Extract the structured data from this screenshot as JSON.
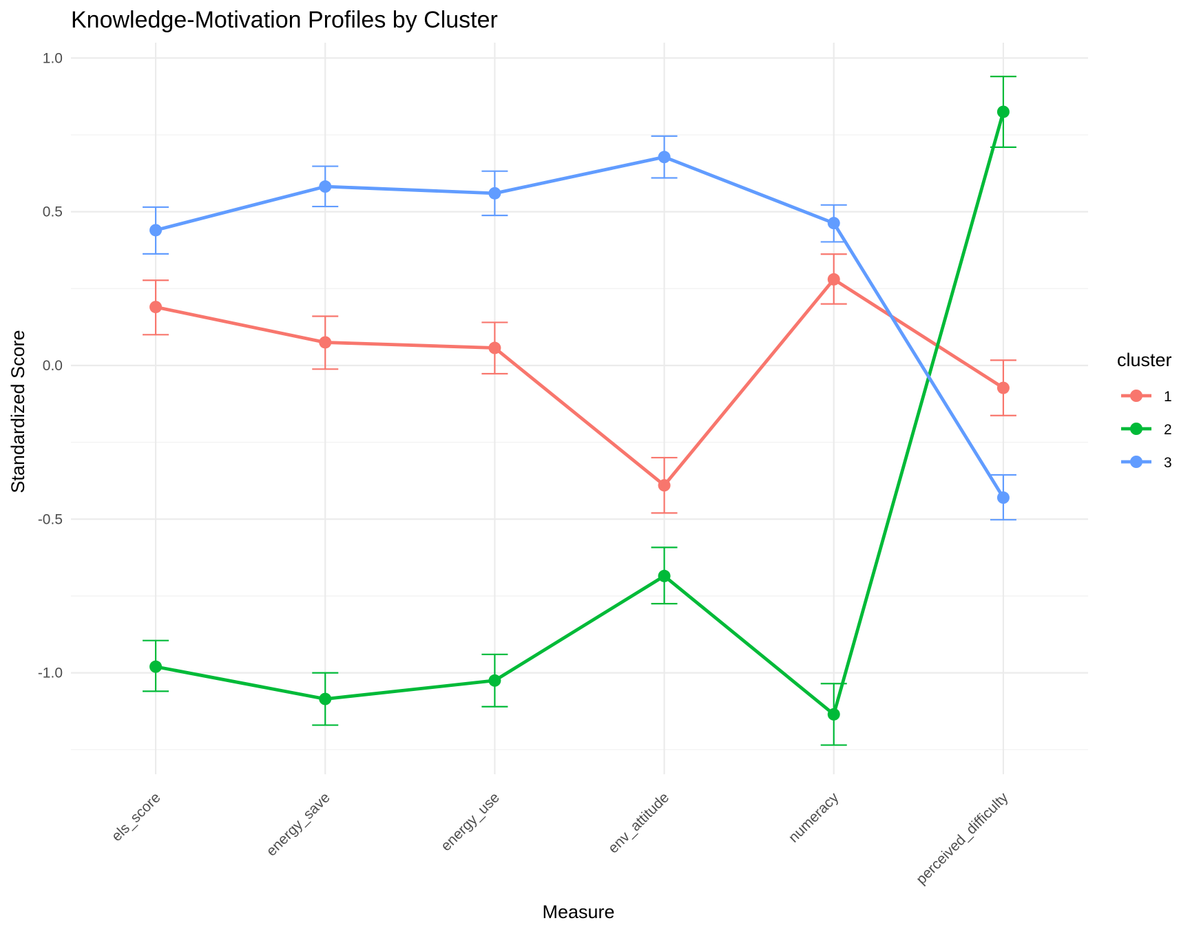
{
  "chart_data": {
    "type": "line",
    "title": "Knowledge-Motivation Profiles by Cluster",
    "xlabel": "Measure",
    "ylabel": "Standardized Score",
    "categories": [
      "els_score",
      "energy_save",
      "energy_use",
      "env_attitude",
      "numeracy",
      "perceived_difficulty"
    ],
    "y_ticks": [
      "1.0",
      "0.5",
      "0.0",
      "-0.5",
      "-1.0"
    ],
    "ylim": [
      -1.33,
      1.05
    ],
    "grid": true,
    "error_bars": true,
    "legend": {
      "title": "cluster",
      "position": "right"
    },
    "series": [
      {
        "name": "1",
        "color": "#F8766D",
        "values": [
          0.19,
          0.075,
          0.057,
          -0.39,
          0.28,
          -0.073
        ],
        "lower": [
          0.1,
          -0.012,
          -0.027,
          -0.48,
          0.2,
          -0.163
        ],
        "upper": [
          0.277,
          0.16,
          0.14,
          -0.3,
          0.362,
          0.017
        ]
      },
      {
        "name": "2",
        "color": "#00BA38",
        "values": [
          -0.98,
          -1.085,
          -1.025,
          -0.685,
          -1.135,
          0.825
        ],
        "lower": [
          -1.06,
          -1.17,
          -1.11,
          -0.775,
          -1.235,
          0.71
        ],
        "upper": [
          -0.895,
          -1.0,
          -0.94,
          -0.592,
          -1.035,
          0.94
        ]
      },
      {
        "name": "3",
        "color": "#619CFF",
        "values": [
          0.44,
          0.582,
          0.56,
          0.678,
          0.463,
          -0.43
        ],
        "lower": [
          0.363,
          0.517,
          0.488,
          0.61,
          0.402,
          -0.502
        ],
        "upper": [
          0.515,
          0.648,
          0.632,
          0.746,
          0.522,
          -0.356
        ]
      }
    ]
  }
}
